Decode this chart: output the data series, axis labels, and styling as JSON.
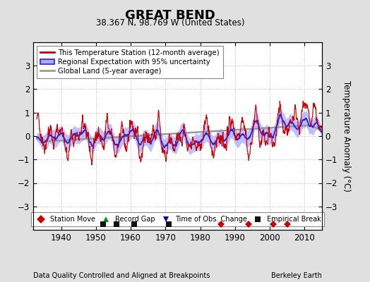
{
  "title": "GREAT BEND",
  "subtitle": "38.367 N, 98.769 W (United States)",
  "ylabel": "Temperature Anomaly (°C)",
  "xlabel_left": "Data Quality Controlled and Aligned at Breakpoints",
  "xlabel_right": "Berkeley Earth",
  "ylim": [
    -4,
    4
  ],
  "xlim": [
    1932,
    2015
  ],
  "xticks": [
    1940,
    1950,
    1960,
    1970,
    1980,
    1990,
    2000,
    2010
  ],
  "yticks": [
    -3,
    -2,
    -1,
    0,
    1,
    2,
    3
  ],
  "background_color": "#e0e0e0",
  "plot_bg_color": "#ffffff",
  "grid_color": "#b0b0b0",
  "station_move_years": [
    1986,
    1994,
    2001,
    2005
  ],
  "empirical_break_years": [
    1952,
    1956,
    1961,
    1971
  ],
  "legend_labels": [
    "This Temperature Station (12-month average)",
    "Regional Expectation with 95% uncertainty",
    "Global Land (5-year average)"
  ],
  "legend_marker_labels": [
    "Station Move",
    "Record Gap",
    "Time of Obs. Change",
    "Empirical Break"
  ],
  "legend_marker_colors": [
    "#cc0000",
    "#009900",
    "#0000cc",
    "#111111"
  ]
}
